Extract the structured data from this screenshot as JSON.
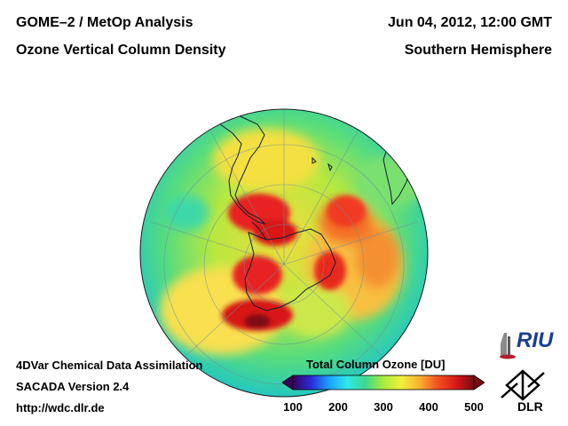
{
  "header": {
    "product": "GOME–2 / MetOp Analysis",
    "quantity": "Ozone Vertical Column Density",
    "datetime": "Jun 04, 2012, 12:00 GMT",
    "region": "Southern Hemisphere"
  },
  "footer": {
    "method": "4DVar Chemical Data Assimilation",
    "version": "SACADA Version 2.4",
    "url": "http://wdc.dlr.de"
  },
  "colorbar": {
    "title": "Total Column Ozone [DU]",
    "ticks": [
      "100",
      "200",
      "300",
      "400",
      "500"
    ],
    "range": [
      100,
      500
    ],
    "colors": [
      "#3a0060",
      "#2a2ad8",
      "#1aa0ff",
      "#2ee8e8",
      "#3cd890",
      "#a8ec3c",
      "#f4f03c",
      "#f8b030",
      "#f45020",
      "#d81818",
      "#7a0a14"
    ]
  },
  "logos": {
    "riu": "RIU",
    "dlr": "DLR"
  },
  "colors": {
    "ocean_fill": "#34d8a8",
    "low_ozone": "#a8ec3c",
    "high_ozone": "#e01818"
  }
}
